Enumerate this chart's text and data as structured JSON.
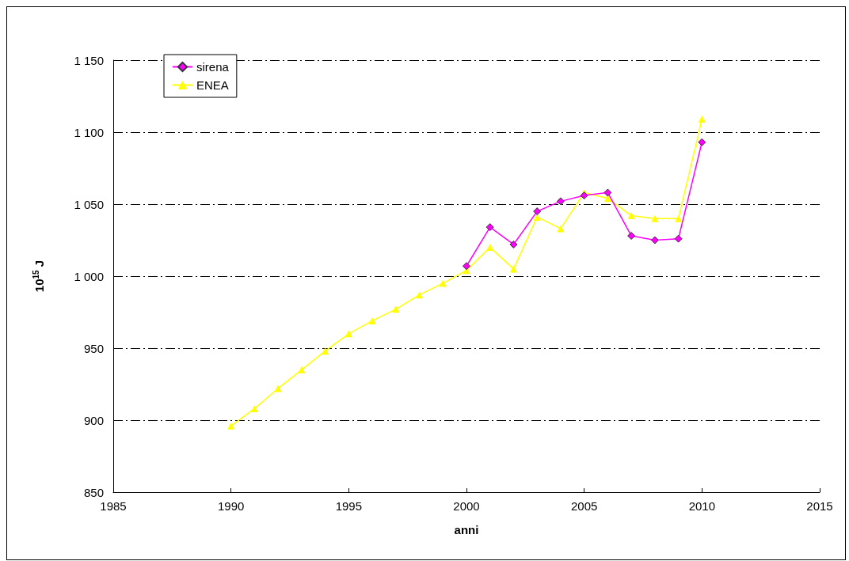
{
  "chart_data": {
    "type": "line",
    "xlabel": "anni",
    "ylabel": "10$^{15}$ J",
    "xlim": [
      1985,
      2015
    ],
    "xticks": [
      1985,
      1990,
      1995,
      2000,
      2005,
      2010,
      2015
    ],
    "ylim": [
      850,
      1150
    ],
    "yticks": [
      850,
      900,
      950,
      {
        "value": 1000,
        "label": "1 000"
      },
      {
        "value": 1050,
        "label": "1 050"
      },
      {
        "value": 1100,
        "label": "1 100"
      },
      {
        "value": 1150,
        "label": "1 150"
      }
    ],
    "grid": "y",
    "legend": "top left",
    "series": [
      {
        "name": "sirena",
        "color": "#ff00ff",
        "marker": "diamond",
        "x": [
          2000,
          2001,
          2002,
          2003,
          2004,
          2005,
          2006,
          2007,
          2008,
          2009,
          2010
        ],
        "values": [
          1007,
          1034,
          1022,
          1045,
          1052,
          1056,
          1058,
          1028,
          1025,
          1026,
          1093
        ]
      },
      {
        "name": "ENEA",
        "color": "#ffff00",
        "marker": "triangle",
        "x": [
          1990,
          1991,
          1992,
          1993,
          1994,
          1995,
          1996,
          1997,
          1998,
          1999,
          2000,
          2001,
          2002,
          2003,
          2004,
          2005,
          2006,
          2007,
          2008,
          2009,
          2010
        ],
        "values": [
          896,
          908,
          922,
          935,
          948,
          960,
          969,
          977,
          987,
          995,
          1004,
          1020,
          1005,
          1041,
          1033,
          1058,
          1054,
          1042,
          1040,
          1040,
          1109
        ]
      }
    ]
  }
}
